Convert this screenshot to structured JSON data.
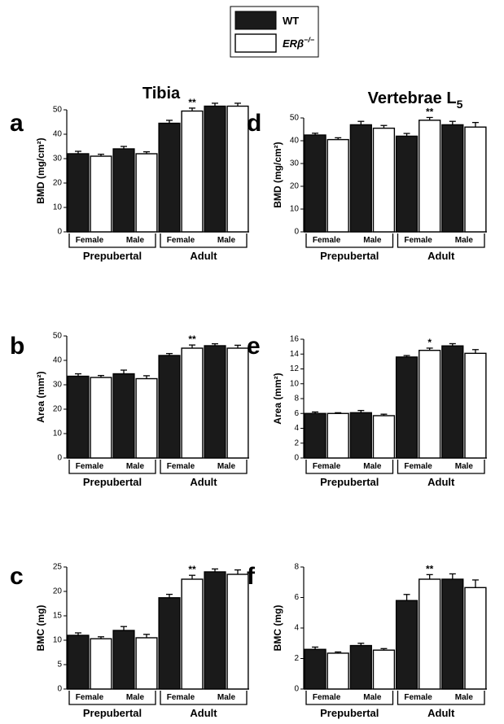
{
  "legend": {
    "entries": [
      {
        "label": "WT",
        "color": "#1a1a1a"
      },
      {
        "label": "ERβ",
        "superscript": "−/−",
        "color": "#ffffff"
      }
    ]
  },
  "chart_data": [
    {
      "id": "a",
      "panel_label": "a",
      "type": "bar",
      "title": "Tibia",
      "ylabel": "BMD (mg/cm²)",
      "ylim": [
        0,
        50
      ],
      "yticks": [
        0,
        10,
        20,
        30,
        40,
        50
      ],
      "categories": [
        "Female",
        "Male",
        "Female",
        "Male"
      ],
      "groups": [
        "Prepubertal",
        "Adult"
      ],
      "series": [
        {
          "name": "WT",
          "values": [
            32,
            34,
            44.5,
            51.5
          ],
          "errors": [
            1.0,
            1.0,
            1.2,
            1.2
          ]
        },
        {
          "name": "ERβ−/−",
          "values": [
            31,
            32,
            49.5,
            51.5
          ],
          "errors": [
            0.8,
            0.8,
            1.2,
            1.2
          ]
        }
      ],
      "annotations": [
        {
          "category_index": 2,
          "series_index": 1,
          "text": "**"
        }
      ]
    },
    {
      "id": "b",
      "panel_label": "b",
      "type": "bar",
      "title": "",
      "ylabel": "Area (mm²)",
      "ylim": [
        0,
        50
      ],
      "yticks": [
        0,
        10,
        20,
        30,
        40,
        50
      ],
      "categories": [
        "Female",
        "Male",
        "Female",
        "Male"
      ],
      "groups": [
        "Prepubertal",
        "Adult"
      ],
      "series": [
        {
          "name": "WT",
          "values": [
            33.5,
            34.5,
            42,
            46
          ],
          "errors": [
            1.0,
            1.5,
            0.8,
            0.8
          ]
        },
        {
          "name": "ERβ−/−",
          "values": [
            33,
            32.5,
            45,
            45
          ],
          "errors": [
            0.8,
            1.2,
            1.3,
            1.2
          ]
        }
      ],
      "annotations": [
        {
          "category_index": 2,
          "series_index": 1,
          "text": "**"
        }
      ]
    },
    {
      "id": "c",
      "panel_label": "c",
      "type": "bar",
      "title": "",
      "ylabel": "BMC (mg)",
      "ylim": [
        0,
        25
      ],
      "yticks": [
        0,
        5,
        10,
        15,
        20,
        25
      ],
      "categories": [
        "Female",
        "Male",
        "Female",
        "Male"
      ],
      "groups": [
        "Prepubertal",
        "Adult"
      ],
      "series": [
        {
          "name": "WT",
          "values": [
            11,
            12,
            18.7,
            24
          ],
          "errors": [
            0.5,
            0.8,
            0.7,
            0.6
          ]
        },
        {
          "name": "ERβ−/−",
          "values": [
            10.3,
            10.5,
            22.5,
            23.5
          ],
          "errors": [
            0.4,
            0.7,
            0.8,
            0.9
          ]
        }
      ],
      "annotations": [
        {
          "category_index": 2,
          "series_index": 1,
          "text": "**"
        }
      ]
    },
    {
      "id": "d",
      "panel_label": "d",
      "type": "bar",
      "title": "Vertebrae L",
      "title_sub": "5",
      "ylabel": "BMD (mg/cm²)",
      "ylim": [
        0,
        50
      ],
      "yticks": [
        0,
        10,
        20,
        30,
        40,
        50
      ],
      "categories": [
        "Female",
        "Male",
        "Female",
        "Male"
      ],
      "groups": [
        "Prepubertal",
        "Adult"
      ],
      "series": [
        {
          "name": "WT",
          "values": [
            42.5,
            47,
            42,
            47
          ],
          "errors": [
            0.8,
            1.5,
            1.2,
            1.5
          ]
        },
        {
          "name": "ERβ−/−",
          "values": [
            40.5,
            45.5,
            49,
            46
          ],
          "errors": [
            0.8,
            1.2,
            1.2,
            2.0
          ]
        }
      ],
      "annotations": [
        {
          "category_index": 2,
          "series_index": 1,
          "text": "**"
        }
      ]
    },
    {
      "id": "e",
      "panel_label": "e",
      "type": "bar",
      "title": "",
      "ylabel": "Area (mm²)",
      "ylim": [
        0,
        16
      ],
      "yticks": [
        0,
        2,
        4,
        6,
        8,
        10,
        12,
        14,
        16
      ],
      "categories": [
        "Female",
        "Male",
        "Female",
        "Male"
      ],
      "groups": [
        "Prepubertal",
        "Adult"
      ],
      "series": [
        {
          "name": "WT",
          "values": [
            6,
            6.1,
            13.6,
            15.1
          ],
          "errors": [
            0.2,
            0.3,
            0.2,
            0.3
          ]
        },
        {
          "name": "ERβ−/−",
          "values": [
            6,
            5.7,
            14.5,
            14.1
          ],
          "errors": [
            0.1,
            0.2,
            0.3,
            0.5
          ]
        }
      ],
      "annotations": [
        {
          "category_index": 2,
          "series_index": 1,
          "text": "*"
        }
      ]
    },
    {
      "id": "f",
      "panel_label": "f",
      "type": "bar",
      "title": "",
      "ylabel": "BMC (mg)",
      "ylim": [
        0,
        8
      ],
      "yticks": [
        0,
        2,
        4,
        6,
        8
      ],
      "categories": [
        "Female",
        "Male",
        "Female",
        "Male"
      ],
      "groups": [
        "Prepubertal",
        "Adult"
      ],
      "series": [
        {
          "name": "WT",
          "values": [
            2.6,
            2.85,
            5.8,
            7.2
          ],
          "errors": [
            0.15,
            0.15,
            0.4,
            0.35
          ]
        },
        {
          "name": "ERβ−/−",
          "values": [
            2.35,
            2.55,
            7.2,
            6.65
          ],
          "errors": [
            0.08,
            0.1,
            0.3,
            0.5
          ]
        }
      ],
      "annotations": [
        {
          "category_index": 2,
          "series_index": 1,
          "text": "**"
        }
      ]
    }
  ]
}
